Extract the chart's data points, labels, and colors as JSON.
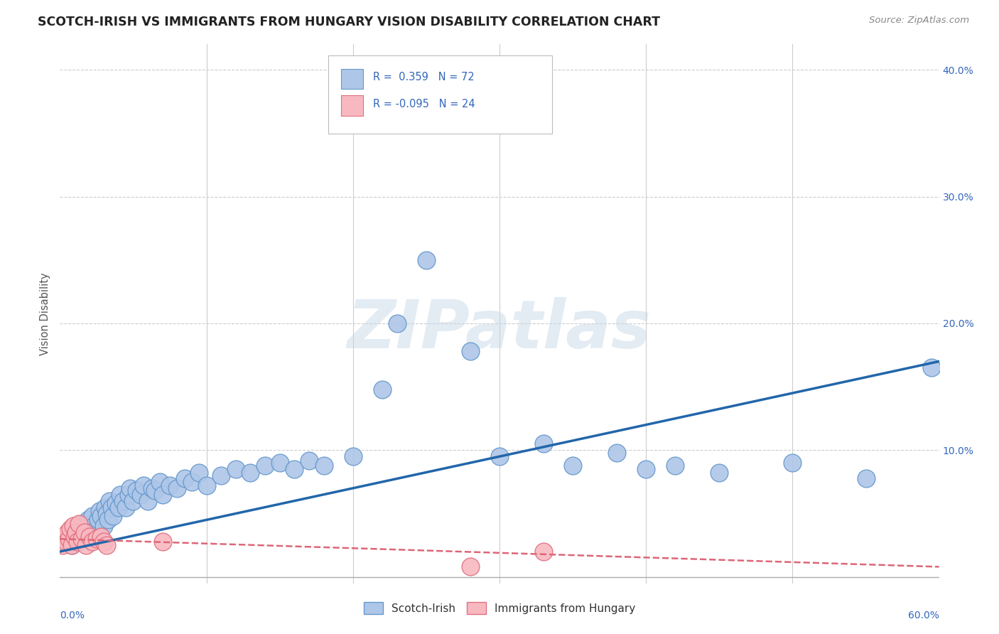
{
  "title": "SCOTCH-IRISH VS IMMIGRANTS FROM HUNGARY VISION DISABILITY CORRELATION CHART",
  "source": "Source: ZipAtlas.com",
  "ylabel": "Vision Disability",
  "xlim": [
    0.0,
    0.6
  ],
  "ylim": [
    -0.005,
    0.42
  ],
  "blue_scatter_color": "#aec6e8",
  "blue_edge_color": "#6699cc",
  "pink_scatter_color": "#f8b8c0",
  "pink_edge_color": "#e07080",
  "blue_line_color": "#2266aa",
  "pink_line_color": "#dd6677",
  "grid_color": "#cccccc",
  "background_color": "#ffffff",
  "watermark": "ZIPatlas",
  "legend_r1": "R =  0.359",
  "legend_n1": "N = 72",
  "legend_r2": "R = -0.095",
  "legend_n2": "N = 24",
  "blue_x": [
    0.005,
    0.008,
    0.01,
    0.01,
    0.012,
    0.013,
    0.015,
    0.015,
    0.016,
    0.017,
    0.018,
    0.019,
    0.02,
    0.021,
    0.022,
    0.023,
    0.025,
    0.026,
    0.027,
    0.028,
    0.03,
    0.031,
    0.032,
    0.033,
    0.034,
    0.035,
    0.036,
    0.038,
    0.04,
    0.041,
    0.043,
    0.045,
    0.047,
    0.048,
    0.05,
    0.052,
    0.055,
    0.057,
    0.06,
    0.063,
    0.065,
    0.068,
    0.07,
    0.075,
    0.08,
    0.085,
    0.09,
    0.095,
    0.1,
    0.11,
    0.12,
    0.13,
    0.14,
    0.15,
    0.16,
    0.17,
    0.18,
    0.2,
    0.22,
    0.23,
    0.25,
    0.28,
    0.3,
    0.33,
    0.35,
    0.38,
    0.4,
    0.42,
    0.45,
    0.5,
    0.55,
    0.595
  ],
  "blue_y": [
    0.03,
    0.025,
    0.028,
    0.035,
    0.032,
    0.038,
    0.03,
    0.042,
    0.035,
    0.04,
    0.038,
    0.045,
    0.035,
    0.042,
    0.048,
    0.04,
    0.038,
    0.045,
    0.052,
    0.048,
    0.04,
    0.055,
    0.05,
    0.045,
    0.06,
    0.055,
    0.048,
    0.058,
    0.055,
    0.065,
    0.06,
    0.055,
    0.065,
    0.07,
    0.06,
    0.068,
    0.065,
    0.072,
    0.06,
    0.07,
    0.068,
    0.075,
    0.065,
    0.072,
    0.07,
    0.078,
    0.075,
    0.082,
    0.072,
    0.08,
    0.085,
    0.082,
    0.088,
    0.09,
    0.085,
    0.092,
    0.088,
    0.095,
    0.148,
    0.2,
    0.25,
    0.178,
    0.095,
    0.105,
    0.088,
    0.098,
    0.085,
    0.088,
    0.082,
    0.09,
    0.078,
    0.165
  ],
  "pink_x": [
    0.002,
    0.003,
    0.004,
    0.005,
    0.006,
    0.007,
    0.008,
    0.009,
    0.01,
    0.011,
    0.012,
    0.013,
    0.015,
    0.017,
    0.018,
    0.02,
    0.022,
    0.025,
    0.028,
    0.03,
    0.032,
    0.07,
    0.28,
    0.33
  ],
  "pink_y": [
    0.025,
    0.03,
    0.028,
    0.035,
    0.03,
    0.038,
    0.025,
    0.04,
    0.032,
    0.035,
    0.028,
    0.042,
    0.03,
    0.035,
    0.025,
    0.032,
    0.028,
    0.03,
    0.032,
    0.028,
    0.025,
    0.028,
    0.008,
    0.02
  ]
}
